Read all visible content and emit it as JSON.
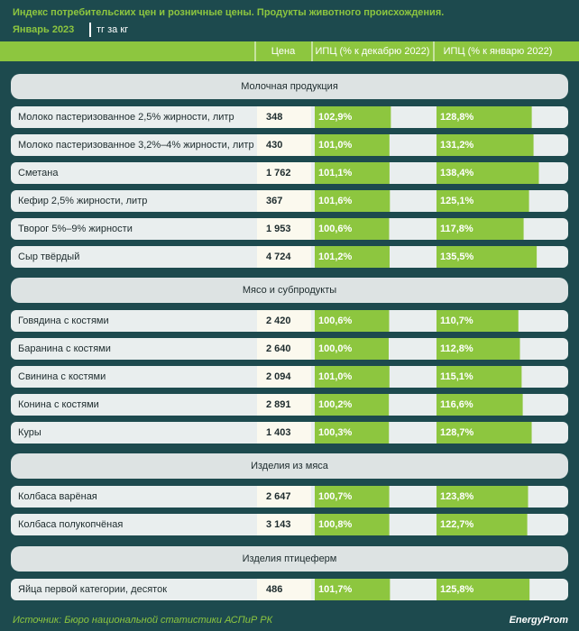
{
  "header": {
    "title": "Индекс потребительских цен и розничные цены. Продукты животного происхождения.",
    "period": "Январь 2023",
    "unit": "тг за кг"
  },
  "columns": [
    "Цена",
    "ИПЦ (% к декабрю 2022)",
    "ИПЦ (% к январю 2022)"
  ],
  "sections": [
    {
      "title": "Молочная продукция",
      "rows": [
        {
          "name": "Молоко пастеризованное 2,5% жирности, литр",
          "price": "348",
          "cpi_dec": {
            "value": 102.9,
            "label": "102,9%"
          },
          "cpi_jan": {
            "value": 128.8,
            "label": "128,8%"
          }
        },
        {
          "name": "Молоко пастеризованное 3,2%–4% жирности, литр",
          "price": "430",
          "cpi_dec": {
            "value": 101.0,
            "label": "101,0%"
          },
          "cpi_jan": {
            "value": 131.2,
            "label": "131,2%"
          }
        },
        {
          "name": "Сметана",
          "price": "1 762",
          "cpi_dec": {
            "value": 101.1,
            "label": "101,1%"
          },
          "cpi_jan": {
            "value": 138.4,
            "label": "138,4%"
          }
        },
        {
          "name": "Кефир 2,5% жирности, литр",
          "price": "367",
          "cpi_dec": {
            "value": 101.6,
            "label": "101,6%"
          },
          "cpi_jan": {
            "value": 125.1,
            "label": "125,1%"
          }
        },
        {
          "name": "Творог 5%–9% жирности",
          "price": "1 953",
          "cpi_dec": {
            "value": 100.6,
            "label": "100,6%"
          },
          "cpi_jan": {
            "value": 117.8,
            "label": "117,8%"
          }
        },
        {
          "name": "Сыр твёрдый",
          "price": "4 724",
          "cpi_dec": {
            "value": 101.2,
            "label": "101,2%"
          },
          "cpi_jan": {
            "value": 135.5,
            "label": "135,5%"
          }
        }
      ]
    },
    {
      "title": "Мясо и субпродукты",
      "rows": [
        {
          "name": "Говядина с костями",
          "price": "2 420",
          "cpi_dec": {
            "value": 100.6,
            "label": "100,6%"
          },
          "cpi_jan": {
            "value": 110.7,
            "label": "110,7%"
          }
        },
        {
          "name": "Баранина с костями",
          "price": "2 640",
          "cpi_dec": {
            "value": 100.0,
            "label": "100,0%"
          },
          "cpi_jan": {
            "value": 112.8,
            "label": "112,8%"
          }
        },
        {
          "name": "Свинина с костями",
          "price": "2 094",
          "cpi_dec": {
            "value": 101.0,
            "label": "101,0%"
          },
          "cpi_jan": {
            "value": 115.1,
            "label": "115,1%"
          }
        },
        {
          "name": "Конина с костями",
          "price": "2 891",
          "cpi_dec": {
            "value": 100.2,
            "label": "100,2%"
          },
          "cpi_jan": {
            "value": 116.6,
            "label": "116,6%"
          }
        },
        {
          "name": "Куры",
          "price": "1 403",
          "cpi_dec": {
            "value": 100.3,
            "label": "100,3%"
          },
          "cpi_jan": {
            "value": 128.7,
            "label": "128,7%"
          }
        }
      ]
    },
    {
      "title": "Изделия из мяса",
      "rows": [
        {
          "name": "Колбаса варёная",
          "price": "2 647",
          "cpi_dec": {
            "value": 100.7,
            "label": "100,7%"
          },
          "cpi_jan": {
            "value": 123.8,
            "label": "123,8%"
          }
        },
        {
          "name": "Колбаса полукопчёная",
          "price": "3 143",
          "cpi_dec": {
            "value": 100.8,
            "label": "100,8%"
          },
          "cpi_jan": {
            "value": 122.7,
            "label": "122,7%"
          }
        }
      ]
    },
    {
      "title": "Изделия птицеферм",
      "rows": [
        {
          "name": "Яйца первой категории, десяток",
          "price": "486",
          "cpi_dec": {
            "value": 101.7,
            "label": "101,7%"
          },
          "cpi_jan": {
            "value": 125.8,
            "label": "125,8%"
          }
        }
      ]
    }
  ],
  "footer": {
    "source": "Источник: Бюро национальной статистики АСПиР РК",
    "brand": "EnergyProm"
  }
}
